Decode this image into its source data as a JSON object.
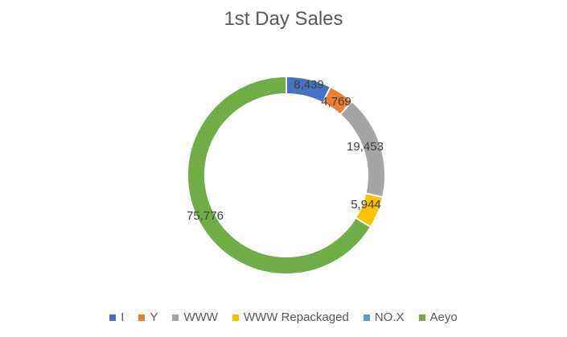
{
  "chart_data": {
    "type": "pie",
    "variant": "doughnut",
    "title": "1st Day Sales",
    "legend_position": "bottom",
    "series": [
      {
        "name": "I",
        "value": 8439,
        "label": "8,439",
        "color": "#4472C4"
      },
      {
        "name": "Y",
        "value": 4769,
        "label": "4,769",
        "color": "#ED7D31"
      },
      {
        "name": "WWW",
        "value": 19453,
        "label": "19,453",
        "color": "#A5A5A5"
      },
      {
        "name": "WWW Repackaged",
        "value": 5944,
        "label": "5,944",
        "color": "#FFC000"
      },
      {
        "name": "NO.X",
        "value": 0,
        "label": "",
        "color": "#5B9BD5"
      },
      {
        "name": "Aeyo",
        "value": 75776,
        "label": "75,776",
        "color": "#70AD47"
      }
    ]
  }
}
